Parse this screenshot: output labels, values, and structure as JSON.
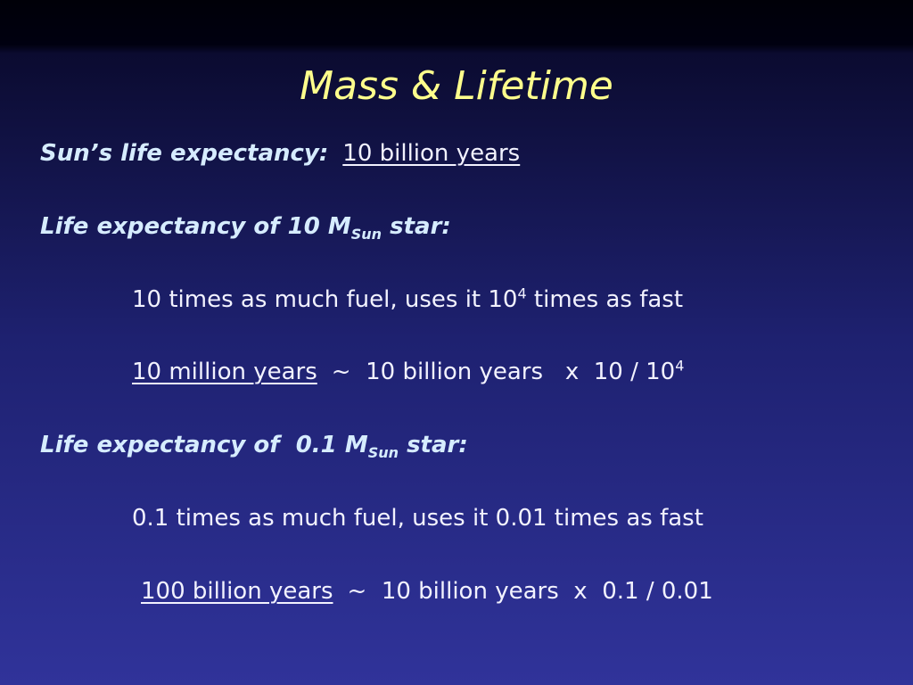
{
  "title": "Mass & Lifetime",
  "sun": {
    "label": "Sun’s life expectancy:",
    "value": "10 billion years"
  },
  "massive": {
    "heading": [
      "Life expectancy of 10 M",
      "Sun",
      " star:"
    ],
    "fuel": [
      "10 times as much fuel, uses it 10",
      "4",
      " times as fast"
    ],
    "result": [
      "10 million years",
      "~  10 billion years   x  10 / 10",
      "4"
    ]
  },
  "light": {
    "heading": [
      "Life expectancy of  0.1 M",
      "Sun",
      " star:"
    ],
    "fuel": "0.1 times as much fuel, uses it 0.01 times as fast",
    "result": [
      "100 billion years",
      "~  10 billion years  x  0.1 / 0.01"
    ]
  }
}
